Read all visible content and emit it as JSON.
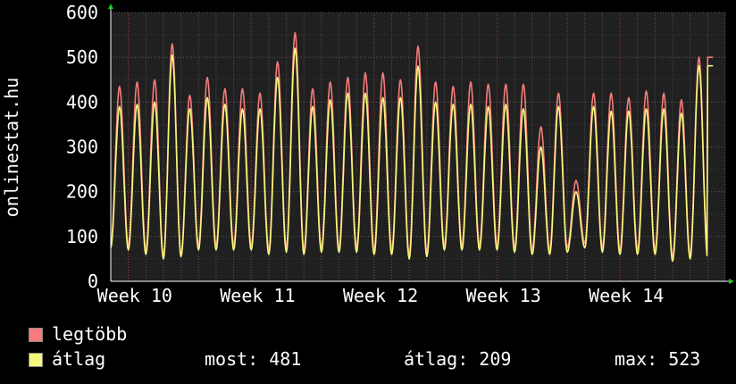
{
  "chart_data": {
    "type": "line",
    "ylabel": "onlinestat.hu",
    "ylim": [
      0,
      600
    ],
    "yticks": [
      0,
      100,
      200,
      300,
      400,
      500,
      600
    ],
    "xticks": [
      "Week 10",
      "Week 11",
      "Week 12",
      "Week 13",
      "Week 14"
    ],
    "days": 35,
    "grid": true,
    "series": [
      {
        "name": "legtöbb",
        "color": "#f77b7b",
        "peaks": [
          435,
          445,
          450,
          530,
          415,
          455,
          430,
          430,
          420,
          490,
          555,
          430,
          445,
          455,
          465,
          465,
          450,
          525,
          445,
          435,
          445,
          440,
          440,
          440,
          345,
          420,
          225,
          420,
          420,
          410,
          425,
          420,
          405,
          500
        ],
        "troughs": [
          85,
          80,
          70,
          55,
          60,
          80,
          80,
          80,
          80,
          70,
          75,
          70,
          75,
          75,
          75,
          70,
          70,
          60,
          65,
          80,
          80,
          80,
          80,
          75,
          70,
          70,
          75,
          85,
          75,
          70,
          70,
          70,
          55,
          60
        ]
      },
      {
        "name": "átlag",
        "color": "#f7f77b",
        "peaks": [
          390,
          395,
          400,
          505,
          385,
          410,
          395,
          385,
          385,
          455,
          520,
          390,
          405,
          420,
          420,
          410,
          410,
          480,
          400,
          395,
          395,
          390,
          395,
          385,
          300,
          390,
          200,
          390,
          380,
          380,
          385,
          385,
          375,
          481
        ],
        "troughs": [
          75,
          70,
          60,
          50,
          55,
          70,
          70,
          70,
          70,
          60,
          65,
          60,
          65,
          65,
          65,
          60,
          60,
          50,
          55,
          70,
          70,
          70,
          70,
          65,
          60,
          60,
          65,
          75,
          65,
          60,
          60,
          60,
          45,
          50
        ]
      }
    ]
  },
  "legend": {
    "max_label": "legtöbb",
    "avg_label": "átlag",
    "now_text": "most: 481",
    "avg_text": "átlag: 209",
    "max_text": "max: 523"
  }
}
